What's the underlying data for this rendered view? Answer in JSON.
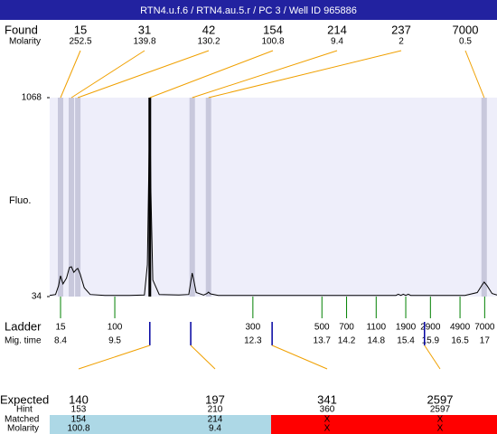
{
  "header": {
    "title": "RTN4.u.f.6 / RTN4.au.5.r / PC 3 / Well ID 965886"
  },
  "chart_data": {
    "type": "electropherogram",
    "y_label": "Fluo.",
    "ylim": [
      34,
      1068
    ],
    "yticks": [
      34,
      1068
    ],
    "xlim": [
      8.18,
      17.25
    ],
    "background": "#eeeefa",
    "found": {
      "label": "Found",
      "molarity_label": "Molarity",
      "line_color": "#f0a000",
      "peaks": [
        {
          "size": 15,
          "molarity": 252.5,
          "time": 8.4,
          "color": "#c8c8dc"
        },
        {
          "size": 31,
          "molarity": 139.8,
          "time": 8.62,
          "color": "#c8c8dc"
        },
        {
          "size": 42,
          "molarity": 130.2,
          "time": 8.75,
          "color": "#c8c8dc"
        },
        {
          "size": 154,
          "molarity": 100.8,
          "time": 10.21,
          "color": "#000000"
        },
        {
          "size": 214,
          "molarity": 9.4,
          "time": 11.07,
          "color": "#c8c8dc"
        },
        {
          "size": 237,
          "molarity": 2,
          "time": 11.4,
          "color": "#c8c8dc"
        },
        {
          "size": 7000,
          "molarity": 0.5,
          "time": 16.99,
          "color": "#c8c8dc"
        }
      ]
    },
    "trace": {
      "color": "#000000",
      "x": [
        8.18,
        8.3,
        8.36,
        8.4,
        8.45,
        8.52,
        8.58,
        8.62,
        8.67,
        8.72,
        8.75,
        8.8,
        8.88,
        9.0,
        9.3,
        9.8,
        10.1,
        10.16,
        10.19,
        10.21,
        10.23,
        10.27,
        10.4,
        10.8,
        11.0,
        11.04,
        11.07,
        11.1,
        11.15,
        11.3,
        11.37,
        11.4,
        11.44,
        11.6,
        12.5,
        13.5,
        14.5,
        15.2,
        15.25,
        15.3,
        15.35,
        15.4,
        15.45,
        15.5,
        16.0,
        16.6,
        16.85,
        16.95,
        16.99,
        17.05,
        17.15,
        17.25
      ],
      "y": [
        40,
        45,
        90,
        142,
        100,
        130,
        185,
        189,
        160,
        175,
        180,
        150,
        80,
        45,
        40,
        40,
        42,
        200,
        700,
        1068,
        600,
        120,
        45,
        42,
        45,
        110,
        156,
        120,
        55,
        42,
        50,
        57,
        48,
        40,
        40,
        40,
        40,
        40,
        46,
        40,
        46,
        40,
        46,
        40,
        40,
        40,
        55,
        95,
        109,
        90,
        50,
        42
      ]
    },
    "ladder": {
      "label": "Ladder",
      "time_label": "Mig. time",
      "color": "#008000",
      "sizes": [
        15,
        100,
        300,
        500,
        700,
        1100,
        1900,
        2900,
        4900,
        7000
      ],
      "times": [
        8.4,
        9.5,
        12.3,
        13.7,
        14.2,
        14.8,
        15.4,
        15.9,
        16.5,
        17
      ]
    },
    "expected": {
      "label": "Expected",
      "hint_label": "Hint",
      "matched_label": "Matched",
      "molarity_label": "Molarity",
      "marker_color": "#0000a0",
      "line_color": "#f0a000",
      "peaks": [
        {
          "size": 140,
          "hint": 153,
          "matched": 154,
          "molarity": 100.8,
          "time": 10.21,
          "color": "#add8e6"
        },
        {
          "size": 197,
          "hint": 210,
          "matched": 214,
          "molarity": 9.4,
          "time": 11.04,
          "color": "#add8e6"
        },
        {
          "size": 341,
          "hint": 360,
          "matched": "X",
          "molarity": "X",
          "time": 12.69,
          "color": "#ff0000"
        },
        {
          "size": 2597,
          "hint": 2597,
          "matched": "X",
          "molarity": "X",
          "time": 15.78,
          "color": "#ff0000"
        }
      ]
    }
  }
}
